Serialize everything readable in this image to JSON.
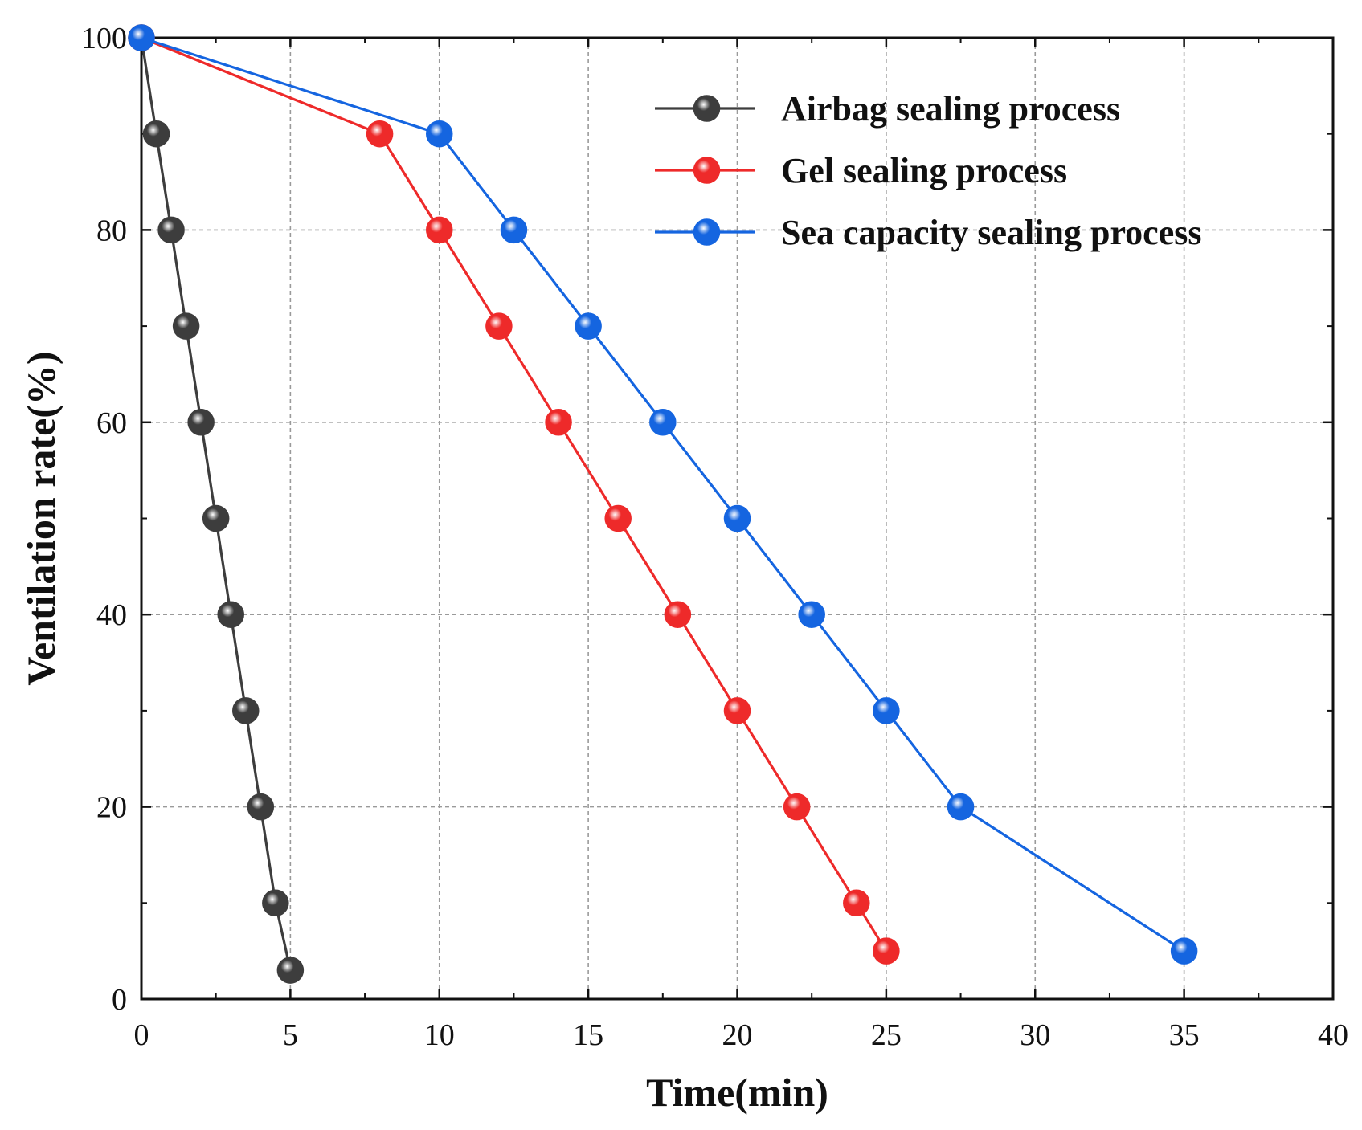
{
  "chart_data": {
    "type": "line",
    "title": "",
    "xlabel": "Time(min)",
    "ylabel": "Ventilation rate(%)",
    "xlim": [
      0,
      40
    ],
    "ylim": [
      0,
      100
    ],
    "xticks": [
      0,
      5,
      10,
      15,
      20,
      25,
      30,
      35,
      40
    ],
    "yticks": [
      0,
      20,
      40,
      60,
      80,
      100
    ],
    "grid": true,
    "legend_position": "top-right",
    "series": [
      {
        "name": "Airbag sealing process",
        "color": "#3d3d3d",
        "x": [
          0,
          0.5,
          1,
          1.5,
          2,
          2.5,
          3,
          3.5,
          4,
          4.5,
          5
        ],
        "y": [
          100,
          90,
          80,
          70,
          60,
          50,
          40,
          30,
          20,
          10,
          3
        ]
      },
      {
        "name": "Gel sealing process",
        "color": "#ee2a2a",
        "x": [
          0,
          8,
          10,
          12,
          14,
          16,
          18,
          20,
          22,
          24,
          25
        ],
        "y": [
          100,
          90,
          80,
          70,
          60,
          50,
          40,
          30,
          20,
          10,
          5
        ]
      },
      {
        "name": "Sea capacity sealing process",
        "color": "#1565e0",
        "x": [
          0,
          10,
          12.5,
          15,
          17.5,
          20,
          22.5,
          25,
          27.5,
          35
        ],
        "y": [
          100,
          90,
          80,
          70,
          60,
          50,
          40,
          30,
          20,
          5
        ]
      }
    ]
  }
}
